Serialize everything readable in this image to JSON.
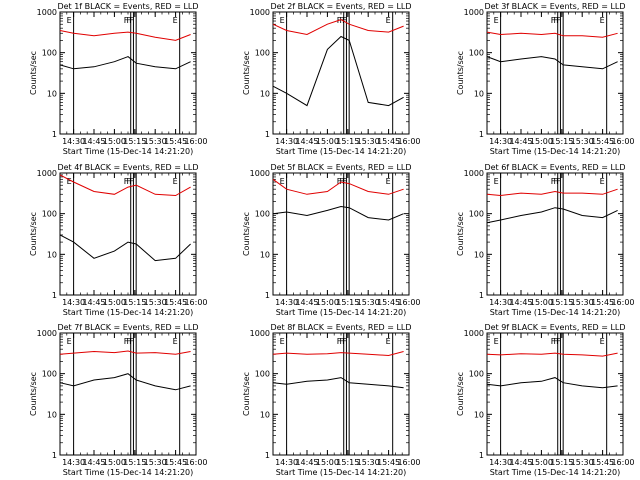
{
  "chart_data": [
    {
      "type": "line",
      "title": "Det 1f BLACK = Events, RED = LLD",
      "xlabel": "Start Time (15-Dec-14 14:21:20)",
      "ylabel": "Counts/sec",
      "ylog": true,
      "ylim": [
        1,
        1000
      ],
      "xlim": [
        "14:20",
        "16:00"
      ],
      "xticks": [
        "14:30",
        "14:45",
        "15:00",
        "15:15",
        "15:30",
        "15:45",
        "16:00"
      ],
      "yticks": [
        "1",
        "10",
        "100",
        "1000"
      ],
      "markers": [
        {
          "label": "E",
          "time": "14:30"
        },
        {
          "label": "F",
          "time": "15:12"
        },
        {
          "label": "F",
          "time": "15:14"
        },
        {
          "label": "F",
          "time": "15:16"
        },
        {
          "label": "E",
          "time": "15:48"
        }
      ],
      "series": [
        {
          "color": "#e00000",
          "x": [
            "14:20",
            "14:30",
            "14:45",
            "15:00",
            "15:10",
            "15:16",
            "15:30",
            "15:45",
            "15:56"
          ],
          "values": [
            350,
            300,
            260,
            300,
            320,
            300,
            240,
            200,
            280
          ]
        },
        {
          "color": "#000000",
          "x": [
            "14:20",
            "14:30",
            "14:45",
            "15:00",
            "15:10",
            "15:16",
            "15:30",
            "15:45",
            "15:56"
          ],
          "values": [
            50,
            40,
            45,
            60,
            80,
            55,
            45,
            40,
            60
          ]
        }
      ]
    },
    {
      "type": "line",
      "title": "Det 2f BLACK = Events, RED = LLD",
      "xlabel": "Start Time (15-Dec-14 14:21:20)",
      "ylabel": "Counts/sec",
      "ylog": true,
      "ylim": [
        1,
        1000
      ],
      "xlim": [
        "14:20",
        "16:00"
      ],
      "xticks": [
        "14:30",
        "14:45",
        "15:00",
        "15:15",
        "15:30",
        "15:45",
        "16:00"
      ],
      "yticks": [
        "1",
        "10",
        "100",
        "1000"
      ],
      "markers": [
        {
          "label": "E",
          "time": "14:30"
        },
        {
          "label": "F",
          "time": "15:12"
        },
        {
          "label": "F",
          "time": "15:14"
        },
        {
          "label": "F",
          "time": "15:16"
        },
        {
          "label": "E",
          "time": "15:48"
        }
      ],
      "series": [
        {
          "color": "#e00000",
          "x": [
            "14:20",
            "14:30",
            "14:45",
            "15:00",
            "15:10",
            "15:16",
            "15:30",
            "15:45",
            "15:56"
          ],
          "values": [
            500,
            350,
            280,
            500,
            650,
            500,
            350,
            320,
            450
          ]
        },
        {
          "color": "#000000",
          "x": [
            "14:20",
            "14:30",
            "14:45",
            "15:00",
            "15:10",
            "15:16",
            "15:30",
            "15:45",
            "15:56"
          ],
          "values": [
            15,
            10,
            5,
            120,
            250,
            200,
            6,
            5,
            8
          ]
        }
      ]
    },
    {
      "type": "line",
      "title": "Det 3f BLACK = Events, RED = LLD",
      "xlabel": "Start Time (15-Dec-14 14:21:20)",
      "ylabel": "Counts/sec",
      "ylog": true,
      "ylim": [
        1,
        1000
      ],
      "xlim": [
        "14:20",
        "16:00"
      ],
      "xticks": [
        "14:30",
        "14:45",
        "15:00",
        "15:15",
        "15:30",
        "15:45",
        "16:00"
      ],
      "yticks": [
        "1",
        "10",
        "100",
        "1000"
      ],
      "markers": [
        {
          "label": "E",
          "time": "14:30"
        },
        {
          "label": "F",
          "time": "15:12"
        },
        {
          "label": "F",
          "time": "15:14"
        },
        {
          "label": "F",
          "time": "15:16"
        },
        {
          "label": "E",
          "time": "15:48"
        }
      ],
      "series": [
        {
          "color": "#e00000",
          "x": [
            "14:20",
            "14:30",
            "14:45",
            "15:00",
            "15:10",
            "15:16",
            "15:30",
            "15:45",
            "15:56"
          ],
          "values": [
            320,
            280,
            300,
            280,
            300,
            260,
            260,
            240,
            300
          ]
        },
        {
          "color": "#000000",
          "x": [
            "14:20",
            "14:30",
            "14:45",
            "15:00",
            "15:10",
            "15:16",
            "15:30",
            "15:45",
            "15:56"
          ],
          "values": [
            80,
            60,
            70,
            80,
            70,
            50,
            45,
            40,
            60
          ]
        }
      ]
    },
    {
      "type": "line",
      "title": "Det 4f BLACK = Events, RED = LLD",
      "xlabel": "Start Time (15-Dec-14 14:21:20)",
      "ylabel": "Counts/sec",
      "ylog": true,
      "ylim": [
        1,
        1000
      ],
      "xlim": [
        "14:20",
        "16:00"
      ],
      "xticks": [
        "14:30",
        "14:45",
        "15:00",
        "15:15",
        "15:30",
        "15:45",
        "16:00"
      ],
      "yticks": [
        "1",
        "10",
        "100",
        "1000"
      ],
      "markers": [
        {
          "label": "E",
          "time": "14:30"
        },
        {
          "label": "F",
          "time": "15:12"
        },
        {
          "label": "F",
          "time": "15:14"
        },
        {
          "label": "F",
          "time": "15:16"
        },
        {
          "label": "E",
          "time": "15:48"
        }
      ],
      "series": [
        {
          "color": "#e00000",
          "x": [
            "14:20",
            "14:30",
            "14:45",
            "15:00",
            "15:10",
            "15:16",
            "15:30",
            "15:45",
            "15:56"
          ],
          "values": [
            900,
            600,
            350,
            300,
            450,
            500,
            300,
            280,
            450
          ]
        },
        {
          "color": "#000000",
          "x": [
            "14:20",
            "14:30",
            "14:45",
            "15:00",
            "15:10",
            "15:16",
            "15:30",
            "15:45",
            "15:56"
          ],
          "values": [
            30,
            20,
            8,
            12,
            20,
            18,
            7,
            8,
            18
          ]
        }
      ]
    },
    {
      "type": "line",
      "title": "Det 5f BLACK = Events, RED = LLD",
      "xlabel": "Start Time (15-Dec-14 14:21:20)",
      "ylabel": "Counts/sec",
      "ylog": true,
      "ylim": [
        1,
        1000
      ],
      "xlim": [
        "14:20",
        "16:00"
      ],
      "xticks": [
        "14:30",
        "14:45",
        "15:00",
        "15:15",
        "15:30",
        "15:45",
        "16:00"
      ],
      "yticks": [
        "1",
        "10",
        "100",
        "1000"
      ],
      "markers": [
        {
          "label": "E",
          "time": "14:30"
        },
        {
          "label": "F",
          "time": "15:12"
        },
        {
          "label": "F",
          "time": "15:14"
        },
        {
          "label": "F",
          "time": "15:16"
        },
        {
          "label": "E",
          "time": "15:48"
        }
      ],
      "series": [
        {
          "color": "#e00000",
          "x": [
            "14:20",
            "14:30",
            "14:45",
            "15:00",
            "15:10",
            "15:16",
            "15:30",
            "15:45",
            "15:56"
          ],
          "values": [
            700,
            400,
            300,
            350,
            600,
            550,
            350,
            300,
            400
          ]
        },
        {
          "color": "#000000",
          "x": [
            "14:20",
            "14:30",
            "14:45",
            "15:00",
            "15:10",
            "15:16",
            "15:30",
            "15:45",
            "15:56"
          ],
          "values": [
            100,
            110,
            90,
            120,
            150,
            140,
            80,
            70,
            100
          ]
        }
      ]
    },
    {
      "type": "line",
      "title": "Det 6f BLACK = Events, RED = LLD",
      "xlabel": "Start Time (15-Dec-14 14:21:20)",
      "ylabel": "Counts/sec",
      "ylog": true,
      "ylim": [
        1,
        1000
      ],
      "xlim": [
        "14:20",
        "16:00"
      ],
      "xticks": [
        "14:30",
        "14:45",
        "15:00",
        "15:15",
        "15:30",
        "15:45",
        "16:00"
      ],
      "yticks": [
        "1",
        "10",
        "100",
        "1000"
      ],
      "markers": [
        {
          "label": "E",
          "time": "14:30"
        },
        {
          "label": "F",
          "time": "15:12"
        },
        {
          "label": "F",
          "time": "15:14"
        },
        {
          "label": "F",
          "time": "15:16"
        },
        {
          "label": "E",
          "time": "15:48"
        }
      ],
      "series": [
        {
          "color": "#e00000",
          "x": [
            "14:20",
            "14:30",
            "14:45",
            "15:00",
            "15:10",
            "15:16",
            "15:30",
            "15:45",
            "15:56"
          ],
          "values": [
            300,
            280,
            320,
            300,
            350,
            320,
            320,
            300,
            400
          ]
        },
        {
          "color": "#000000",
          "x": [
            "14:20",
            "14:30",
            "14:45",
            "15:00",
            "15:10",
            "15:16",
            "15:30",
            "15:45",
            "15:56"
          ],
          "values": [
            60,
            70,
            90,
            110,
            140,
            130,
            90,
            80,
            120
          ]
        }
      ]
    },
    {
      "type": "line",
      "title": "Det 7f BLACK = Events, RED = LLD",
      "xlabel": "Start Time (15-Dec-14 14:21:20)",
      "ylabel": "Counts/sec",
      "ylog": true,
      "ylim": [
        1,
        1000
      ],
      "xlim": [
        "14:20",
        "16:00"
      ],
      "xticks": [
        "14:30",
        "14:45",
        "15:00",
        "15:15",
        "15:30",
        "15:45",
        "16:00"
      ],
      "yticks": [
        "1",
        "10",
        "100",
        "1000"
      ],
      "markers": [
        {
          "label": "E",
          "time": "14:30"
        },
        {
          "label": "F",
          "time": "15:12"
        },
        {
          "label": "F",
          "time": "15:14"
        },
        {
          "label": "F",
          "time": "15:16"
        },
        {
          "label": "E",
          "time": "15:48"
        }
      ],
      "series": [
        {
          "color": "#e00000",
          "x": [
            "14:20",
            "14:30",
            "14:45",
            "15:00",
            "15:10",
            "15:16",
            "15:30",
            "15:45",
            "15:56"
          ],
          "values": [
            300,
            320,
            350,
            330,
            360,
            320,
            330,
            300,
            350
          ]
        },
        {
          "color": "#000000",
          "x": [
            "14:20",
            "14:30",
            "14:45",
            "15:00",
            "15:10",
            "15:16",
            "15:30",
            "15:45",
            "15:56"
          ],
          "values": [
            60,
            50,
            70,
            80,
            100,
            70,
            50,
            40,
            50
          ]
        }
      ]
    },
    {
      "type": "line",
      "title": "Det 8f BLACK = Events, RED = LLD",
      "xlabel": "Start Time (15-Dec-14 14:21:20)",
      "ylabel": "Counts/sec",
      "ylog": true,
      "ylim": [
        1,
        1000
      ],
      "xlim": [
        "14:20",
        "16:00"
      ],
      "xticks": [
        "14:30",
        "14:45",
        "15:00",
        "15:15",
        "15:30",
        "15:45",
        "16:00"
      ],
      "yticks": [
        "1",
        "10",
        "100",
        "1000"
      ],
      "markers": [
        {
          "label": "E",
          "time": "14:30"
        },
        {
          "label": "F",
          "time": "15:12"
        },
        {
          "label": "F",
          "time": "15:14"
        },
        {
          "label": "F",
          "time": "15:16"
        },
        {
          "label": "E",
          "time": "15:48"
        }
      ],
      "series": [
        {
          "color": "#e00000",
          "x": [
            "14:20",
            "14:30",
            "14:45",
            "15:00",
            "15:10",
            "15:16",
            "15:30",
            "15:45",
            "15:56"
          ],
          "values": [
            300,
            320,
            300,
            310,
            330,
            320,
            300,
            280,
            350
          ]
        },
        {
          "color": "#000000",
          "x": [
            "14:20",
            "14:30",
            "14:45",
            "15:00",
            "15:10",
            "15:16",
            "15:30",
            "15:45",
            "15:56"
          ],
          "values": [
            60,
            55,
            65,
            70,
            80,
            60,
            55,
            50,
            45
          ]
        }
      ]
    },
    {
      "type": "line",
      "title": "Det 9f BLACK = Events, RED = LLD",
      "xlabel": "Start Time (15-Dec-14 14:21:20)",
      "ylabel": "Counts/sec",
      "ylog": true,
      "ylim": [
        1,
        1000
      ],
      "xlim": [
        "14:20",
        "16:00"
      ],
      "xticks": [
        "14:30",
        "14:45",
        "15:00",
        "15:15",
        "15:30",
        "15:45",
        "16:00"
      ],
      "yticks": [
        "1",
        "10",
        "100",
        "1000"
      ],
      "markers": [
        {
          "label": "E",
          "time": "14:30"
        },
        {
          "label": "F",
          "time": "15:12"
        },
        {
          "label": "F",
          "time": "15:14"
        },
        {
          "label": "F",
          "time": "15:16"
        },
        {
          "label": "E",
          "time": "15:48"
        }
      ],
      "series": [
        {
          "color": "#e00000",
          "x": [
            "14:20",
            "14:30",
            "14:45",
            "15:00",
            "15:10",
            "15:16",
            "15:30",
            "15:45",
            "15:56"
          ],
          "values": [
            300,
            290,
            310,
            300,
            320,
            300,
            290,
            270,
            320
          ]
        },
        {
          "color": "#000000",
          "x": [
            "14:20",
            "14:30",
            "14:45",
            "15:00",
            "15:10",
            "15:16",
            "15:30",
            "15:45",
            "15:56"
          ],
          "values": [
            55,
            50,
            60,
            65,
            80,
            60,
            50,
            45,
            50
          ]
        }
      ]
    }
  ]
}
